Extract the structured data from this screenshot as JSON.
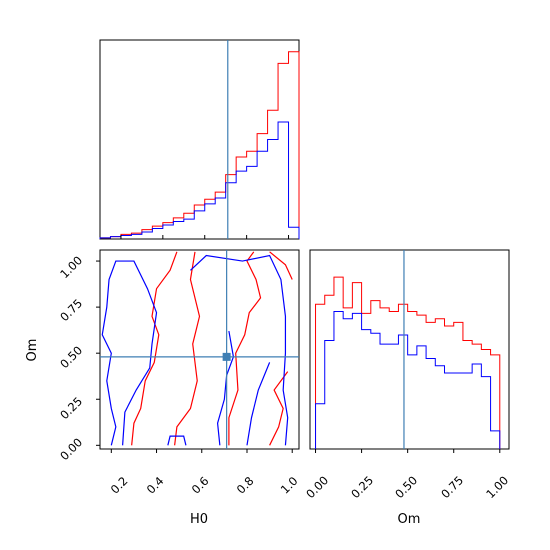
{
  "chart_data": [
    {
      "type": "step-histogram",
      "panel": "H0 marginal",
      "xlim": [
        0.1,
        1.05
      ],
      "truth_line": {
        "x": 0.71,
        "color": "#3f7fb4"
      },
      "series": [
        {
          "color": "#ff0000",
          "bins": [
            0.1,
            0.15,
            0.2,
            0.25,
            0.3,
            0.35,
            0.4,
            0.45,
            0.5,
            0.55,
            0.6,
            0.65,
            0.7,
            0.75,
            0.8,
            0.85,
            0.9,
            0.95,
            1.0,
            1.05
          ],
          "values": [
            1,
            2,
            4,
            5,
            8,
            11,
            14,
            18,
            22,
            29,
            34,
            40,
            55,
            70,
            75,
            90,
            110,
            150,
            160
          ]
        },
        {
          "color": "#0000ff",
          "bins": [
            0.1,
            0.15,
            0.2,
            0.25,
            0.3,
            0.35,
            0.4,
            0.45,
            0.5,
            0.55,
            0.6,
            0.65,
            0.7,
            0.75,
            0.8,
            0.85,
            0.9,
            0.95,
            1.0,
            1.05
          ],
          "values": [
            1,
            2,
            3,
            4,
            6,
            9,
            12,
            15,
            17,
            24,
            30,
            35,
            48,
            58,
            62,
            75,
            85,
            100,
            10
          ]
        }
      ],
      "ylim": [
        0,
        170
      ]
    },
    {
      "type": "contour",
      "panel": "Om vs H0",
      "xlabel": "H0",
      "ylabel": "Om",
      "xlim": [
        0.15,
        1.03
      ],
      "ylim": [
        -0.02,
        1.06
      ],
      "xticks": [
        "0.2",
        "0.4",
        "0.6",
        "0.8",
        "1.0"
      ],
      "yticks": [
        "0.00",
        "0.25",
        "0.50",
        "0.75",
        "1.00"
      ],
      "truth_point": {
        "x": 0.71,
        "y": 0.48,
        "color": "#3f7fb4"
      },
      "series": [
        {
          "color": "#ff0000",
          "paths": [
            [
              [
                0.29,
                0.0
              ],
              [
                0.3,
                0.12
              ],
              [
                0.33,
                0.2
              ],
              [
                0.35,
                0.35
              ],
              [
                0.39,
                0.45
              ],
              [
                0.41,
                0.6
              ],
              [
                0.38,
                0.7
              ],
              [
                0.4,
                0.85
              ],
              [
                0.46,
                0.95
              ],
              [
                0.49,
                1.05
              ]
            ],
            [
              [
                0.48,
                0.0
              ],
              [
                0.49,
                0.1
              ],
              [
                0.55,
                0.2
              ],
              [
                0.58,
                0.35
              ],
              [
                0.56,
                0.55
              ],
              [
                0.59,
                0.7
              ],
              [
                0.55,
                0.9
              ],
              [
                0.57,
                1.05
              ]
            ],
            [
              [
                0.72,
                0.0
              ],
              [
                0.72,
                0.15
              ],
              [
                0.76,
                0.3
              ],
              [
                0.75,
                0.5
              ],
              [
                0.79,
                0.6
              ],
              [
                0.81,
                0.72
              ],
              [
                0.86,
                0.8
              ],
              [
                0.84,
                0.9
              ],
              [
                0.8,
                1.0
              ],
              [
                0.83,
                1.05
              ]
            ],
            [
              [
                0.9,
                1.05
              ],
              [
                0.97,
                0.98
              ],
              [
                1.0,
                0.9
              ]
            ],
            [
              [
                0.9,
                0.0
              ],
              [
                0.94,
                0.1
              ],
              [
                0.96,
                0.2
              ],
              [
                0.92,
                0.3
              ],
              [
                0.98,
                0.4
              ]
            ]
          ]
        },
        {
          "color": "#0000ff",
          "paths": [
            [
              [
                0.2,
                0.0
              ],
              [
                0.22,
                0.1
              ],
              [
                0.2,
                0.2
              ],
              [
                0.18,
                0.35
              ],
              [
                0.2,
                0.5
              ],
              [
                0.16,
                0.6
              ],
              [
                0.18,
                0.75
              ],
              [
                0.19,
                0.9
              ],
              [
                0.22,
                1.0
              ],
              [
                0.3,
                1.0
              ],
              [
                0.36,
                0.85
              ],
              [
                0.4,
                0.72
              ],
              [
                0.38,
                0.55
              ],
              [
                0.37,
                0.42
              ],
              [
                0.31,
                0.3
              ],
              [
                0.26,
                0.18
              ],
              [
                0.25,
                0.0
              ]
            ],
            [
              [
                0.45,
                0.0
              ],
              [
                0.46,
                0.05
              ],
              [
                0.52,
                0.05
              ],
              [
                0.53,
                0.0
              ]
            ],
            [
              [
                0.55,
                0.95
              ],
              [
                0.62,
                1.03
              ],
              [
                0.78,
                1.0
              ],
              [
                0.9,
                1.03
              ],
              [
                0.95,
                0.9
              ],
              [
                0.97,
                0.7
              ],
              [
                0.97,
                0.5
              ],
              [
                0.96,
                0.3
              ],
              [
                0.98,
                0.15
              ],
              [
                0.97,
                0.0
              ]
            ],
            [
              [
                0.68,
                0.0
              ],
              [
                0.67,
                0.12
              ],
              [
                0.7,
                0.25
              ],
              [
                0.71,
                0.38
              ],
              [
                0.74,
                0.48
              ],
              [
                0.72,
                0.62
              ]
            ],
            [
              [
                0.8,
                0.0
              ],
              [
                0.82,
                0.15
              ],
              [
                0.85,
                0.3
              ],
              [
                0.9,
                0.45
              ]
            ]
          ]
        }
      ]
    },
    {
      "type": "step-histogram",
      "panel": "Om marginal",
      "xlabel": "Om",
      "xlim": [
        -0.03,
        1.05
      ],
      "ylim": [
        0,
        110
      ],
      "xticks": [
        "0.00",
        "0.25",
        "0.50",
        "0.75",
        "1.00"
      ],
      "truth_line": {
        "x": 0.48,
        "color": "#3f7fb4"
      },
      "series": [
        {
          "color": "#ff0000",
          "bins": [
            0.0,
            0.05,
            0.1,
            0.15,
            0.2,
            0.25,
            0.3,
            0.35,
            0.4,
            0.45,
            0.5,
            0.55,
            0.6,
            0.65,
            0.7,
            0.75,
            0.8,
            0.85,
            0.9,
            0.95,
            1.0
          ],
          "values": [
            80,
            85,
            95,
            78,
            92,
            75,
            82,
            78,
            76,
            80,
            76,
            74,
            70,
            72,
            68,
            70,
            60,
            58,
            55,
            52
          ]
        },
        {
          "color": "#0000ff",
          "bins": [
            0.0,
            0.05,
            0.1,
            0.15,
            0.2,
            0.25,
            0.3,
            0.35,
            0.4,
            0.45,
            0.5,
            0.55,
            0.6,
            0.65,
            0.7,
            0.75,
            0.8,
            0.85,
            0.9,
            0.95,
            1.0
          ],
          "values": [
            25,
            60,
            76,
            72,
            75,
            66,
            64,
            58,
            58,
            63,
            52,
            57,
            50,
            46,
            42,
            42,
            42,
            47,
            40,
            10
          ]
        }
      ]
    }
  ]
}
